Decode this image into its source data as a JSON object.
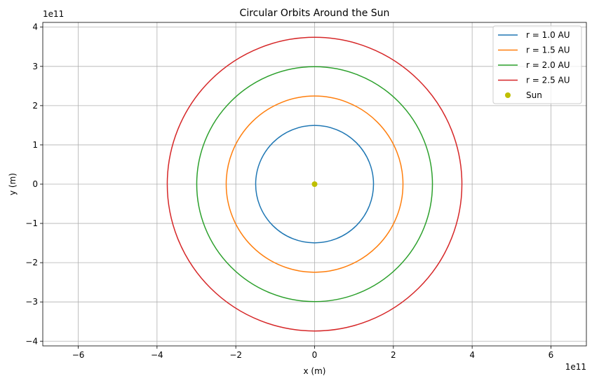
{
  "chart_data": {
    "type": "line",
    "title": "Circular Orbits Around the Sun",
    "xlabel": "x (m)",
    "ylabel": "y (m)",
    "x_offset_label": "1e11",
    "y_offset_label": "1e11",
    "xlim": [
      -6.9,
      6.9
    ],
    "ylim": [
      -4.12,
      4.12
    ],
    "xticks": [
      -6,
      -4,
      -2,
      0,
      2,
      4,
      6
    ],
    "xtick_labels": [
      "−6",
      "−4",
      "−2",
      "0",
      "2",
      "4",
      "6"
    ],
    "yticks": [
      -4,
      -3,
      -2,
      -1,
      0,
      1,
      2,
      3,
      4
    ],
    "ytick_labels": [
      "−4",
      "−3",
      "−2",
      "−1",
      "0",
      "1",
      "2",
      "3",
      "4"
    ],
    "grid": true,
    "legend_position": "top-right",
    "series": [
      {
        "name": "r = 1.0 AU",
        "radius": 1.496,
        "color": "#1f77b4"
      },
      {
        "name": "r = 1.5 AU",
        "radius": 2.244,
        "color": "#ff7f0e"
      },
      {
        "name": "r = 2.0 AU",
        "radius": 2.992,
        "color": "#2ca02c"
      },
      {
        "name": "r = 2.5 AU",
        "radius": 3.74,
        "color": "#d62728"
      }
    ],
    "sun": {
      "name": "Sun",
      "x": 0,
      "y": 0,
      "color": "#bfbf00"
    }
  }
}
